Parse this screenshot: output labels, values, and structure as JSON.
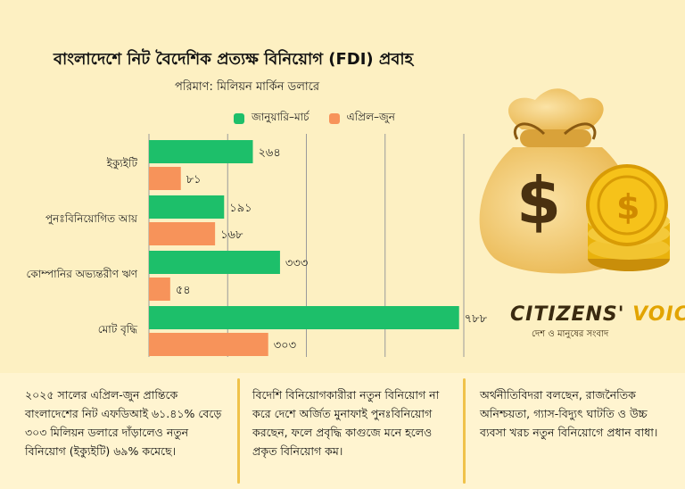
{
  "title": "বাংলাদেশে নিট বৈদেশিক প্রত্যক্ষ বিনিয়োগ (FDI) প্রবাহ",
  "subtitle": "পরিমাণ: মিলিয়ন মার্কিন ডলারে",
  "colors": {
    "series1": "#1dbf6a",
    "series2": "#f7935a",
    "background": "#fdf0c2"
  },
  "chart_data": {
    "type": "bar",
    "orientation": "horizontal",
    "categories": [
      "ইক্যুইটি",
      "পুনঃবিনিয়োগিত আয়",
      "কোম্পানির অভ্যন্তরীণ ঋণ",
      "মোট বৃদ্ধি"
    ],
    "series": [
      {
        "name": "জানুয়ারি–মার্চ",
        "values": [
          264,
          191,
          333,
          788
        ],
        "labels": [
          "২৬৪",
          "১৯১",
          "৩৩৩",
          "৭৮৮"
        ]
      },
      {
        "name": "এপ্রিল–জুন",
        "values": [
          81,
          168,
          54,
          303
        ],
        "labels": [
          "৮১",
          "১৬৮",
          "৫৪",
          "৩০৩"
        ]
      }
    ],
    "xlim": [
      0,
      800
    ],
    "grid": true,
    "legend": "top"
  },
  "logo": {
    "word1": "CITIZENS'",
    "word2": "VOICE",
    "tagline": "দেশ ও মানুষের সংবাদ"
  },
  "notes": [
    "২০২৫ সালের এপ্রিল-জুন প্রান্তিকে বাংলাদেশের নিট এফডিআই ৬১.৪১% বেড়ে ৩০৩ মিলিয়ন ডলারে দাঁড়ালেও নতুন বিনিয়োগ (ইক্যুইটি) ৬৯% কমেছে।",
    "বিদেশি বিনিয়োগকারীরা নতুন বিনিয়োগ না করে দেশে অর্জিত মুনাফাই পুনঃবিনিয়োগ করছেন, ফলে প্রবৃদ্ধি কাগুজে মনে হলেও প্রকৃত বিনিয়োগ কম।",
    "অর্থনীতিবিদরা বলছেন, রাজনৈতিক অনিশ্চয়তা, গ্যাস-বিদ্যুৎ ঘাটতি ও উচ্চ ব্যবসা খরচ নতুন বিনিয়োগে প্রধান বাধা।"
  ]
}
